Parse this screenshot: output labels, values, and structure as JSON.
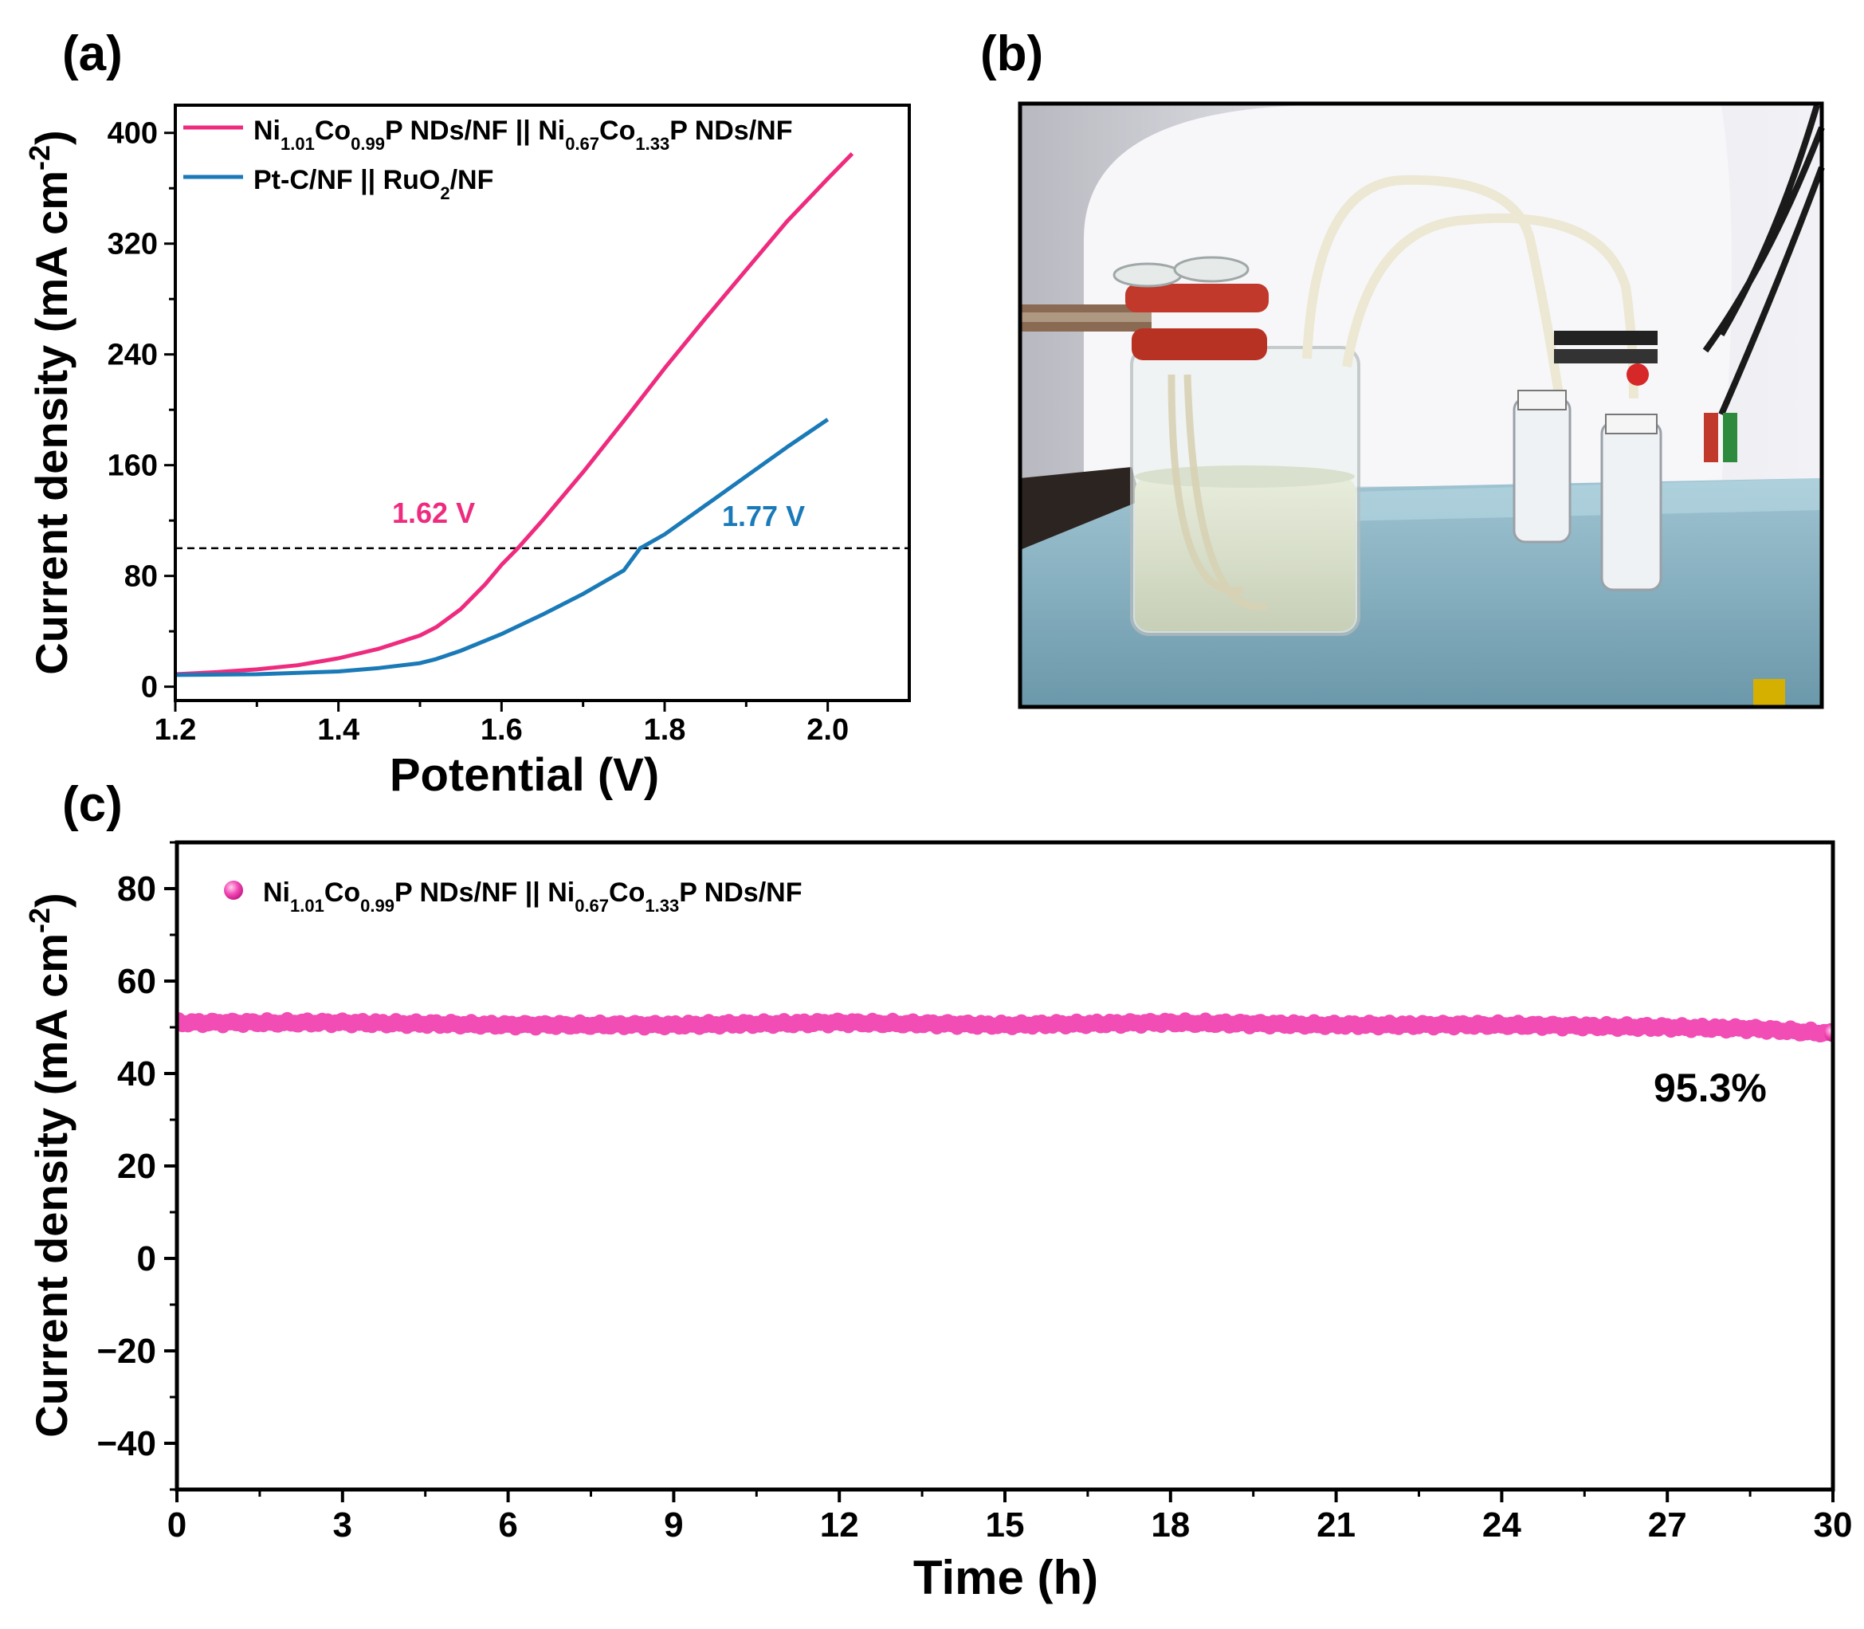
{
  "panels": {
    "a": {
      "label": "(a)"
    },
    "b": {
      "label": "(b)"
    },
    "c": {
      "label": "(c)"
    }
  },
  "colors": {
    "pink": "#ee2b7e",
    "blue": "#1a7ab8",
    "stability": "#f24cb5",
    "axis": "#000000"
  },
  "chart_data": [
    {
      "id": "a",
      "type": "line",
      "xlabel": "Potential (V)",
      "ylabel": "Current density (mA cm-2)",
      "ylabel_parts": {
        "main": "Current density (mA cm",
        "sup": "-2",
        "close": ")"
      },
      "xlim": [
        1.2,
        2.1
      ],
      "ylim": [
        -10,
        420
      ],
      "xticks": [
        "1.2",
        "1.4",
        "1.6",
        "1.8",
        "2.0"
      ],
      "xtick_values": [
        1.2,
        1.4,
        1.6,
        1.8,
        2.0
      ],
      "yticks": [
        "0",
        "80",
        "160",
        "240",
        "320",
        "400"
      ],
      "ytick_values": [
        0,
        80,
        160,
        240,
        320,
        400
      ],
      "reference_line_y": 100,
      "legend_position": "top-left",
      "series": [
        {
          "name": "Ni1.01Co0.99P NDs/NF || Ni0.67Co1.33P NDs/NF",
          "legend": [
            {
              "t": "Ni"
            },
            {
              "t": "1.01",
              "s": "sub"
            },
            {
              "t": "Co"
            },
            {
              "t": "0.99",
              "s": "sub"
            },
            {
              "t": "P NDs/NF || Ni"
            },
            {
              "t": "0.67",
              "s": "sub"
            },
            {
              "t": "Co"
            },
            {
              "t": "1.33",
              "s": "sub"
            },
            {
              "t": "P NDs/NF"
            }
          ],
          "color": "#ee2b7e",
          "x": [
            1.2,
            1.25,
            1.3,
            1.35,
            1.4,
            1.45,
            1.5,
            1.52,
            1.55,
            1.58,
            1.6,
            1.62,
            1.65,
            1.7,
            1.75,
            1.8,
            1.85,
            1.9,
            1.95,
            2.0,
            2.03
          ],
          "y": [
            9,
            10.5,
            12.5,
            15.5,
            20.5,
            27.5,
            37,
            43,
            56,
            74,
            88,
            100,
            120,
            155,
            192,
            230,
            266,
            301,
            336,
            367,
            385
          ]
        },
        {
          "name": "Pt-C/NF || RuO2/NF",
          "legend": [
            {
              "t": "Pt-C/NF || RuO"
            },
            {
              "t": "2",
              "s": "sub"
            },
            {
              "t": "/NF"
            }
          ],
          "color": "#1a7ab8",
          "x": [
            1.2,
            1.3,
            1.4,
            1.45,
            1.5,
            1.52,
            1.55,
            1.6,
            1.65,
            1.7,
            1.75,
            1.77,
            1.8,
            1.85,
            1.9,
            1.95,
            2.0
          ],
          "y": [
            8.5,
            9,
            11,
            13.5,
            17,
            20,
            26,
            38,
            52,
            67,
            84,
            100,
            110,
            131,
            152,
            173,
            193
          ]
        }
      ],
      "annotations": [
        {
          "text": "1.62 V",
          "color": "#ee2b7e"
        },
        {
          "text": "1.77 V",
          "color": "#1a7ab8"
        }
      ]
    },
    {
      "id": "c",
      "type": "scatter",
      "xlabel": "Time (h)",
      "ylabel": "Current density (mA cm-2)",
      "ylabel_parts": {
        "main": "Current density (mA cm",
        "sup": "-2",
        "close": ")"
      },
      "xlim": [
        0,
        30
      ],
      "ylim": [
        -50,
        90
      ],
      "xticks": [
        "0",
        "3",
        "6",
        "9",
        "12",
        "15",
        "18",
        "21",
        "24",
        "27",
        "30"
      ],
      "xtick_values": [
        0,
        3,
        6,
        9,
        12,
        15,
        18,
        21,
        24,
        27,
        30
      ],
      "yticks": [
        "−40",
        "−20",
        "0",
        "20",
        "40",
        "60",
        "80"
      ],
      "ytick_values": [
        -40,
        -20,
        0,
        20,
        40,
        60,
        80
      ],
      "legend_position": "top-left",
      "series": [
        {
          "name": "Ni1.01Co0.99P NDs/NF || Ni0.67Co1.33P NDs/NF",
          "legend": [
            {
              "t": "Ni"
            },
            {
              "t": "1.01",
              "s": "sub"
            },
            {
              "t": "Co"
            },
            {
              "t": "0.99",
              "s": "sub"
            },
            {
              "t": "P NDs/NF || Ni"
            },
            {
              "t": "0.67",
              "s": "sub"
            },
            {
              "t": "Co"
            },
            {
              "t": "1.33",
              "s": "sub"
            },
            {
              "t": "P NDs/NF"
            }
          ],
          "color": "#f24cb5",
          "x": [
            0,
            3,
            6,
            9,
            12,
            15,
            18,
            21,
            24,
            27,
            28.5,
            30
          ],
          "y": [
            51,
            51,
            50.5,
            50.5,
            51,
            50.5,
            51,
            50.5,
            50.5,
            50,
            49.7,
            48.7
          ]
        }
      ],
      "annotations": [
        {
          "text": "95.3%",
          "color": "#000000"
        }
      ]
    }
  ]
}
